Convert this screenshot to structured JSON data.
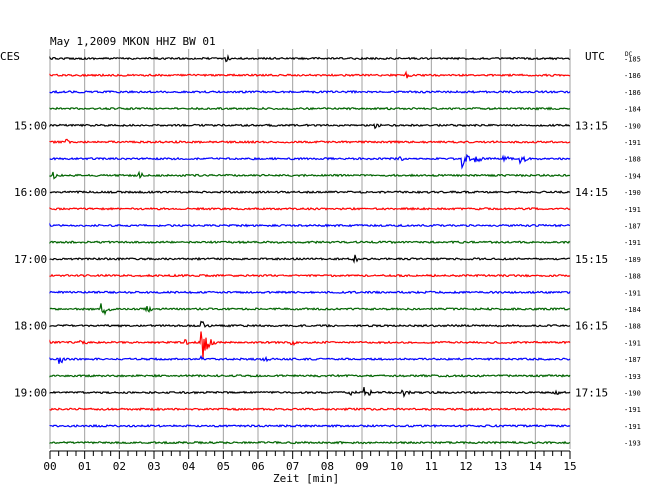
{
  "chart_data": {
    "type": "line",
    "title": "May 1,2009   MKON HHZ BW 01",
    "left_zone_label": "CES",
    "right_zone_label": "UTC",
    "dc_label": "DC",
    "xlabel": "Zeit [min]",
    "x_tick_labels": [
      "00",
      "01",
      "02",
      "03",
      "04",
      "05",
      "06",
      "07",
      "08",
      "09",
      "10",
      "11",
      "12",
      "13",
      "14",
      "15"
    ],
    "xlim": [
      0,
      15
    ],
    "grid": true,
    "trace_colors": [
      "#000000",
      "#ff0000",
      "#0000ff",
      "#006400"
    ],
    "left_time_labels": [
      {
        "row": 4,
        "label": "15:00"
      },
      {
        "row": 8,
        "label": "16:00"
      },
      {
        "row": 12,
        "label": "17:00"
      },
      {
        "row": 16,
        "label": "18:00"
      },
      {
        "row": 20,
        "label": "19:00"
      }
    ],
    "right_time_labels": [
      {
        "row": 4,
        "label": "13:15"
      },
      {
        "row": 8,
        "label": "14:15"
      },
      {
        "row": 12,
        "label": "15:15"
      },
      {
        "row": 16,
        "label": "16:15"
      },
      {
        "row": 20,
        "label": "17:15"
      }
    ],
    "dc_values": [
      "-185",
      "-186",
      "-186",
      "-184",
      "-190",
      "-191",
      "-188",
      "-194",
      "-190",
      "-191",
      "-187",
      "-191",
      "-189",
      "-188",
      "-191",
      "-184",
      "-188",
      "-191",
      "-187",
      "-193",
      "-190",
      "-191",
      "-191",
      "-193"
    ],
    "events": [
      {
        "row": 0,
        "minute": 5.1,
        "amp": 3
      },
      {
        "row": 1,
        "minute": 10.3,
        "amp": 4
      },
      {
        "row": 4,
        "minute": 9.4,
        "amp": 3
      },
      {
        "row": 5,
        "minute": 0.5,
        "amp": 3
      },
      {
        "row": 6,
        "minute": 10.1,
        "amp": 3
      },
      {
        "row": 6,
        "minute": 11.9,
        "amp": 9
      },
      {
        "row": 6,
        "minute": 12.3,
        "amp": 5
      },
      {
        "row": 6,
        "minute": 13.1,
        "amp": 4
      },
      {
        "row": 6,
        "minute": 13.6,
        "amp": 7
      },
      {
        "row": 7,
        "minute": 0.1,
        "amp": 4
      },
      {
        "row": 7,
        "minute": 2.6,
        "amp": 3
      },
      {
        "row": 12,
        "minute": 8.8,
        "amp": 4
      },
      {
        "row": 15,
        "minute": 1.5,
        "amp": 9
      },
      {
        "row": 15,
        "minute": 2.8,
        "amp": 4
      },
      {
        "row": 16,
        "minute": 4.4,
        "amp": 5
      },
      {
        "row": 17,
        "minute": 0.9,
        "amp": 4
      },
      {
        "row": 17,
        "minute": 3.9,
        "amp": 4
      },
      {
        "row": 17,
        "minute": 4.4,
        "amp": 24
      },
      {
        "row": 17,
        "minute": 7.0,
        "amp": 3
      },
      {
        "row": 18,
        "minute": 0.3,
        "amp": 5
      },
      {
        "row": 18,
        "minute": 4.4,
        "amp": 3
      },
      {
        "row": 18,
        "minute": 6.2,
        "amp": 3
      },
      {
        "row": 20,
        "minute": 8.7,
        "amp": 4
      },
      {
        "row": 20,
        "minute": 9.1,
        "amp": 6
      },
      {
        "row": 20,
        "minute": 10.2,
        "amp": 5
      },
      {
        "row": 20,
        "minute": 14.6,
        "amp": 3
      }
    ]
  }
}
